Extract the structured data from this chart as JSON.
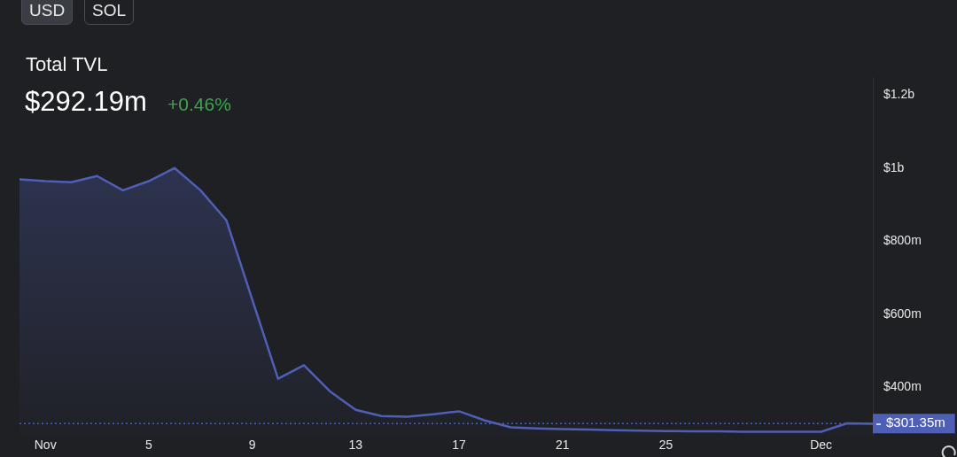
{
  "chart_data": {
    "type": "area",
    "title": "Total TVL",
    "subtitle": "$292.19m",
    "annotations": [
      "USD",
      "SOL",
      "+0.46%"
    ],
    "x": [
      "--10-31",
      "--11-01",
      "--11-02",
      "--11-03",
      "--11-04",
      "--11-05",
      "--11-06",
      "--11-07",
      "--11-08",
      "--11-09",
      "--11-10",
      "--11-11",
      "--11-12",
      "--11-13",
      "--11-14",
      "--11-15",
      "--11-16",
      "--11-17",
      "--11-18",
      "--11-19",
      "--11-20",
      "--11-21",
      "--11-22",
      "--11-23",
      "--11-24",
      "--11-25",
      "--11-26",
      "--11-27",
      "--11-28",
      "--11-29",
      "--11-30",
      "--12-01",
      "--12-02",
      "--12-03"
    ],
    "series": [
      {
        "color": "#4f5fb5",
        "values": [
          970000000,
          965000000,
          962000000,
          979000000,
          940000000,
          965000000,
          1001000000,
          940000000,
          858000000,
          641000000,
          424000000,
          461000000,
          390000000,
          339000000,
          322000000,
          320000000,
          327000000,
          335000000,
          310000000,
          291000000,
          288000000,
          286000000,
          285000000,
          283000000,
          282000000,
          281000000,
          280000000,
          280000000,
          279000000,
          279000000,
          279000000,
          279000000,
          302000000,
          301000000
        ]
      }
    ],
    "xlim": [
      "--10-31",
      "--12-03"
    ],
    "xticks": [
      {
        "value": "--11-01",
        "label": "Nov"
      },
      {
        "value": "--11-05",
        "label": "5"
      },
      {
        "value": "--11-09",
        "label": "9"
      },
      {
        "value": "--11-13",
        "label": "13"
      },
      {
        "value": "--11-17",
        "label": "17"
      },
      {
        "value": "--11-21",
        "label": "21"
      },
      {
        "value": "--11-25",
        "label": "25"
      },
      {
        "value": "--12-01",
        "label": "Dec"
      }
    ],
    "ylim": [
      270000000,
      1250000000
    ],
    "yticks": [
      {
        "value": 400000000,
        "label": "$400m"
      },
      {
        "value": 600000000,
        "label": "$600m"
      },
      {
        "value": 800000000,
        "label": "$800m"
      },
      {
        "value": 1000000000,
        "label": "$1b"
      },
      {
        "value": 1200000000,
        "label": "$1.2b"
      }
    ],
    "ref_lines": [
      {
        "axis": "y",
        "value": 301350000,
        "label": "$301.35m",
        "color": "#4f5fb5",
        "line_style": "dotted"
      }
    ],
    "marker": "none",
    "legend": false,
    "grid": false
  }
}
